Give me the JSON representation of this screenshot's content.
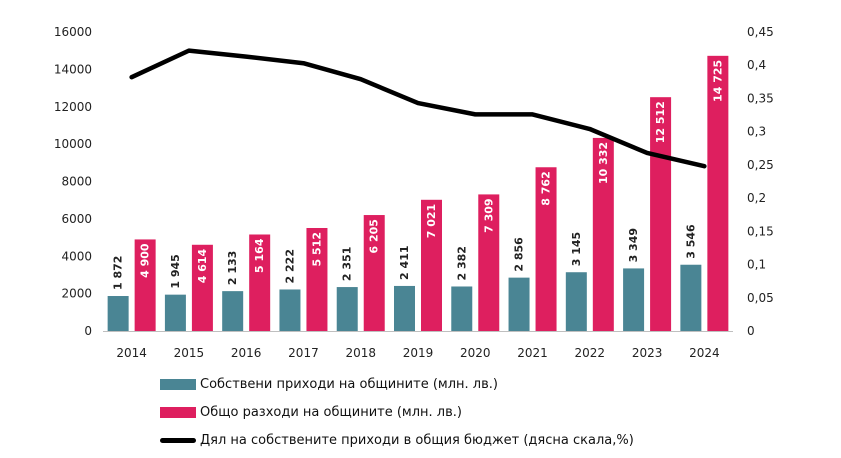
{
  "chart_data": {
    "type": "bar",
    "categories": [
      "2014",
      "2015",
      "2016",
      "2017",
      "2018",
      "2019",
      "2020",
      "2021",
      "2022",
      "2023",
      "2024"
    ],
    "series": [
      {
        "name": "Собствени приходи на общините (млн. лв.)",
        "type": "bar",
        "axis": "left",
        "color": "#4a8594",
        "values": [
          1872,
          1945,
          2133,
          2222,
          2351,
          2411,
          2382,
          2856,
          3145,
          3349,
          3546
        ],
        "labels": [
          "1 872",
          "1 945",
          "2 133",
          "2 222",
          "2 351",
          "2 411",
          "2 382",
          "2 856",
          "3 145",
          "3 349",
          "3 546"
        ]
      },
      {
        "name": "Общо разходи на общините (млн. лв.)",
        "type": "bar",
        "axis": "left",
        "color": "#de1f5f",
        "values": [
          4900,
          4614,
          5164,
          5512,
          6205,
          7021,
          7309,
          8762,
          10332,
          12512,
          14725
        ],
        "labels": [
          "4 900",
          "4 614",
          "5 164",
          "5 512",
          "6 205",
          "7 021",
          "7 309",
          "8 762",
          "10 332",
          "12 512",
          "14 725"
        ]
      },
      {
        "name": "Дял на собствените приходи в общия бюджет (дясна скала,%)",
        "type": "line",
        "axis": "right",
        "color": "#000000",
        "values": [
          0.382,
          0.422,
          0.413,
          0.403,
          0.379,
          0.343,
          0.326,
          0.326,
          0.304,
          0.268,
          0.248
        ]
      }
    ],
    "y_left": {
      "ylim": [
        0,
        16000
      ],
      "ticks": [
        0,
        2000,
        4000,
        6000,
        8000,
        10000,
        12000,
        14000,
        16000
      ],
      "tick_labels": [
        "0",
        "2000",
        "4000",
        "6000",
        "8000",
        "10000",
        "12000",
        "14000",
        "16000"
      ]
    },
    "y_right": {
      "ylim": [
        0,
        0.45
      ],
      "ticks": [
        0,
        0.05,
        0.1,
        0.15,
        0.2,
        0.25,
        0.3,
        0.35,
        0.4,
        0.45
      ],
      "tick_labels": [
        "0",
        "0,05",
        "0,1",
        "0,15",
        "0,2",
        "0,25",
        "0,3",
        "0,35",
        "0,4",
        "0,45"
      ]
    },
    "grid": false,
    "legend_position": "bottom"
  }
}
